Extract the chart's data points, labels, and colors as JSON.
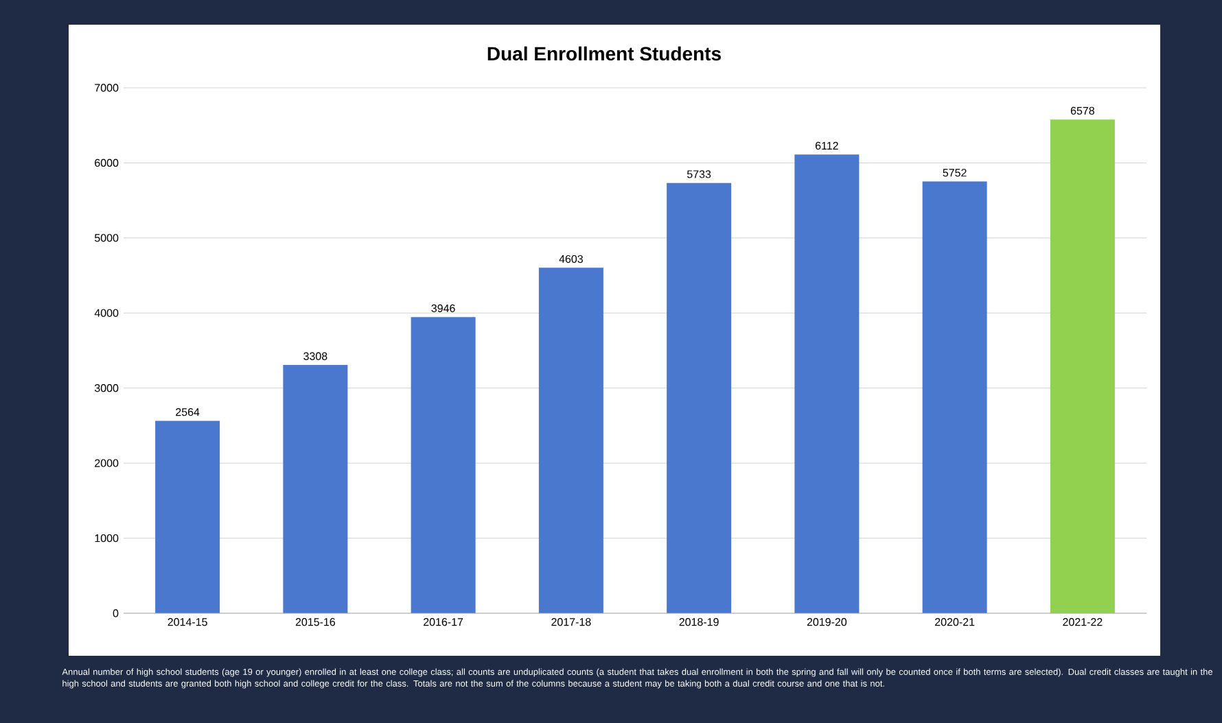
{
  "chart_data": {
    "type": "bar",
    "title": "Dual Enrollment Students",
    "categories": [
      "2014-15",
      "2015-16",
      "2016-17",
      "2017-18",
      "2018-19",
      "2019-20",
      "2020-21",
      "2021-22"
    ],
    "values": [
      2564,
      3308,
      3946,
      4603,
      5733,
      6112,
      5752,
      6578
    ],
    "colors": [
      "#4a78cf",
      "#4a78cf",
      "#4a78cf",
      "#4a78cf",
      "#4a78cf",
      "#4a78cf",
      "#4a78cf",
      "#92d050"
    ],
    "ylim": [
      0,
      7000
    ],
    "yticks": [
      0,
      1000,
      2000,
      3000,
      4000,
      5000,
      6000,
      7000
    ],
    "grid": "y",
    "data_labels": true,
    "annotations": [
      "Annual number of high school students (age 19 or younger) enrolled in at least one college class; all counts are unduplicated counts (a student that takes dual enrollment in both the spring and fall will only be counted once if both terms are selected). Dual credit classes are taught in the high school and students are granted both high school and college credit for the class. Totals are not the sum of the columns because a student may be taking both a dual credit course and one that is not."
    ]
  }
}
